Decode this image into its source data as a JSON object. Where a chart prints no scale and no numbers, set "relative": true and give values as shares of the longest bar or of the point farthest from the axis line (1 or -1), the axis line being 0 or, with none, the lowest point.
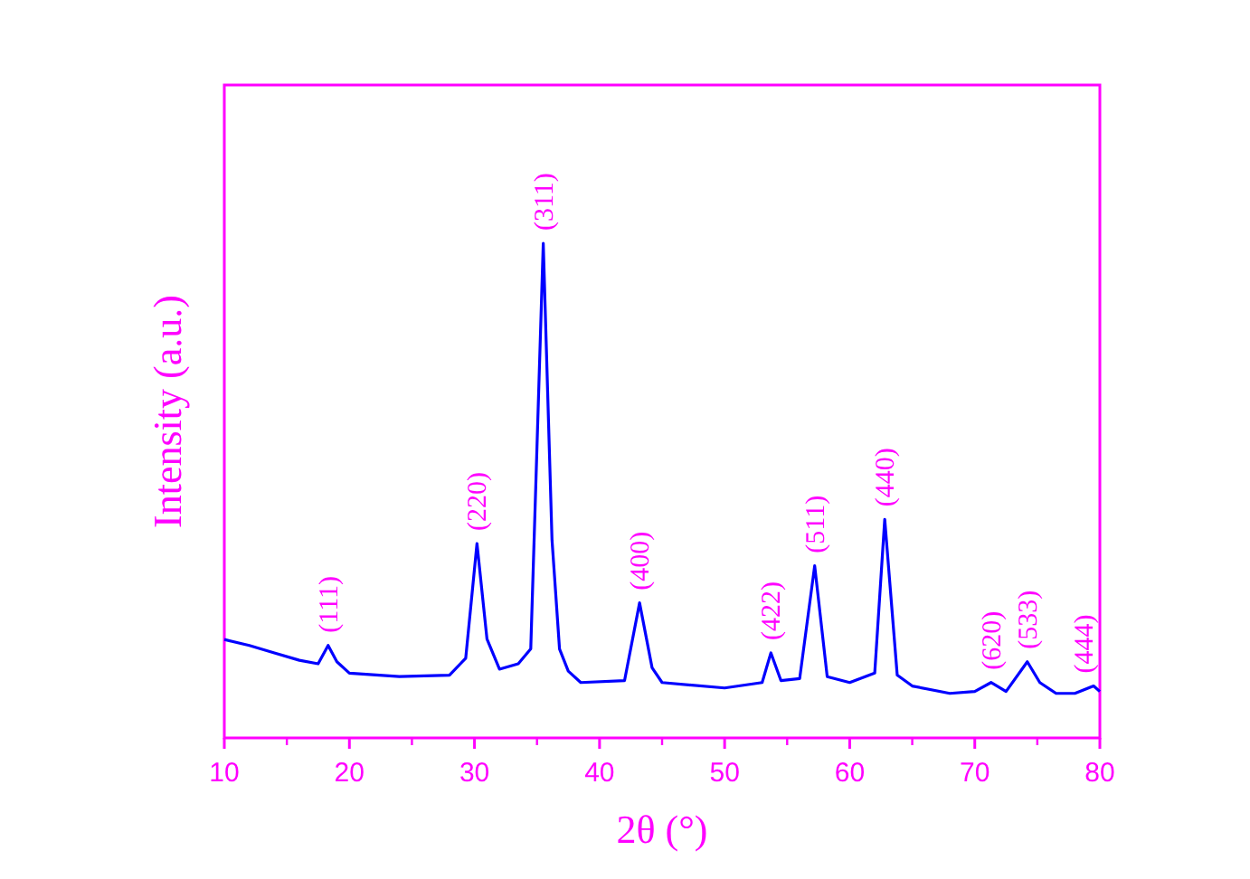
{
  "chart_data": {
    "type": "line",
    "relative": true,
    "xlabel": "2θ (°)",
    "ylabel": "Intensity (a.u.)",
    "xlim": [
      10,
      80
    ],
    "xticks": [
      10,
      20,
      30,
      40,
      50,
      60,
      70,
      80
    ],
    "grid": false,
    "line_style": "solid",
    "series": [
      {
        "color": "#0000ff",
        "x": [
          10,
          12,
          14,
          16,
          17.5,
          18.3,
          19,
          20,
          24,
          28,
          29.3,
          30.2,
          31,
          32,
          33.5,
          34.5,
          35,
          35.5,
          36.2,
          36.8,
          37.5,
          38.5,
          42,
          43.2,
          44.2,
          45,
          50,
          53,
          53.7,
          54.5,
          56,
          57.2,
          58.2,
          60,
          62,
          62.8,
          63.8,
          65,
          68,
          70,
          71.3,
          72.5,
          74.2,
          75.2,
          76.5,
          78,
          79.5,
          80
        ],
        "values": [
          0.199,
          0.187,
          0.172,
          0.157,
          0.15,
          0.187,
          0.154,
          0.131,
          0.124,
          0.127,
          0.161,
          0.393,
          0.2,
          0.139,
          0.15,
          0.18,
          0.59,
          1,
          0.4,
          0.18,
          0.135,
          0.112,
          0.116,
          0.273,
          0.142,
          0.112,
          0.101,
          0.112,
          0.172,
          0.116,
          0.12,
          0.348,
          0.124,
          0.112,
          0.131,
          0.442,
          0.127,
          0.105,
          0.09,
          0.094,
          0.112,
          0.094,
          0.154,
          0.112,
          0.09,
          0.09,
          0.105,
          0.094
        ]
      }
    ],
    "annotations": [
      {
        "text": "(111)",
        "x": 18.3,
        "y": 0.187
      },
      {
        "text": "(220)",
        "x": 30.2,
        "y": 0.393
      },
      {
        "text": "(311)",
        "x": 35.5,
        "y": 1
      },
      {
        "text": "(400)",
        "x": 43.2,
        "y": 0.273
      },
      {
        "text": "(422)",
        "x": 53.7,
        "y": 0.172
      },
      {
        "text": "(511)",
        "x": 57.2,
        "y": 0.348
      },
      {
        "text": "(440)",
        "x": 62.8,
        "y": 0.442
      },
      {
        "text": "(620)",
        "x": 71.3,
        "y": 0.112
      },
      {
        "text": "(533)",
        "x": 74.2,
        "y": 0.154
      },
      {
        "text": "(444)",
        "x": 79.5,
        "y": 0.105
      }
    ]
  }
}
